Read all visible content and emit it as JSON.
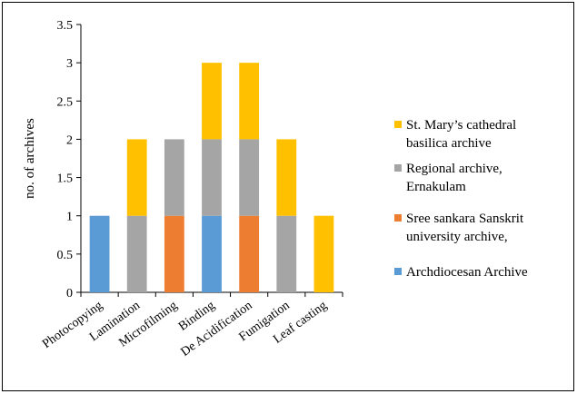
{
  "chart_data": {
    "type": "bar",
    "stacked": true,
    "categories": [
      "Photocopying",
      "Lamination",
      "Microfilming",
      "Binding",
      "De Acidification",
      "Fumigation",
      "Leaf casting"
    ],
    "series": [
      {
        "name": "Archdiocesan Archive",
        "color": "#5B9BD5",
        "values": [
          1,
          0,
          0,
          1,
          0,
          0,
          0
        ]
      },
      {
        "name": "Sree sankara Sanskrit university archive,",
        "color": "#ED7D31",
        "values": [
          0,
          0,
          1,
          0,
          1,
          0,
          0
        ]
      },
      {
        "name": "Regional archive, Ernakulam",
        "color": "#A5A5A5",
        "values": [
          0,
          1,
          1,
          1,
          1,
          1,
          0
        ]
      },
      {
        "name": "St. Mary’s cathedral basilica archive",
        "color": "#FFC000",
        "values": [
          0,
          1,
          0,
          1,
          1,
          1,
          1
        ]
      }
    ],
    "legend_order": [
      "St. Mary’s cathedral basilica archive",
      "Regional archive, Ernakulam",
      "Sree sankara Sanskrit university archive,",
      "Archdiocesan Archive"
    ],
    "legend_lines": {
      "St. Mary’s cathedral basilica archive": [
        "St. Mary’s cathedral",
        "basilica archive"
      ],
      "Regional archive, Ernakulam": [
        "Regional archive,",
        "Ernakulam"
      ],
      "Sree sankara Sanskrit university archive,": [
        "Sree sankara Sanskrit",
        "university archive,"
      ],
      "Archdiocesan Archive": [
        "Archdiocesan Archive"
      ]
    },
    "ylabel": "no. of archives",
    "xlabel": "",
    "title": "",
    "ylim": [
      0,
      3.5
    ],
    "yticks": [
      "0",
      "0.5",
      "1",
      "1.5",
      "2",
      "2.5",
      "3",
      "3.5"
    ],
    "legend_position": "right",
    "grid": false
  }
}
